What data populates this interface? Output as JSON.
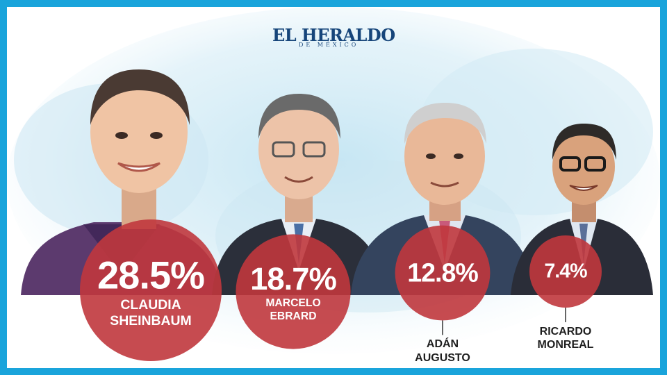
{
  "brand": {
    "name": "EL HERALDO",
    "subtitle": "DE MÉXICO"
  },
  "colors": {
    "frame": "#1aa4db",
    "bubble": "#c0373d",
    "brand_blue": "#16457a",
    "name_dark": "#1e1e1e"
  },
  "chart_data": {
    "type": "bubble",
    "categories": [
      "CLAUDIA SHEINBAUM",
      "MARCELO EBRARD",
      "ADÁN AUGUSTO",
      "RICARDO MONREAL"
    ],
    "values": [
      28.5,
      18.7,
      12.8,
      7.4
    ],
    "labels": [
      "28.5%",
      "18.7%",
      "12.8%",
      "7.4%"
    ],
    "candidates": [
      {
        "value": 28.5,
        "label": "28.5%",
        "name_lines": [
          "CLAUDIA",
          "SHEINBAUM"
        ]
      },
      {
        "value": 18.7,
        "label": "18.7%",
        "name_lines": [
          "MARCELO",
          "EBRARD"
        ]
      },
      {
        "value": 12.8,
        "label": "12.8%",
        "name_lines": [
          "ADÁN",
          "AUGUSTO"
        ]
      },
      {
        "value": 7.4,
        "label": "7.4%",
        "name_lines": [
          "RICARDO",
          "MONREAL"
        ]
      }
    ]
  }
}
